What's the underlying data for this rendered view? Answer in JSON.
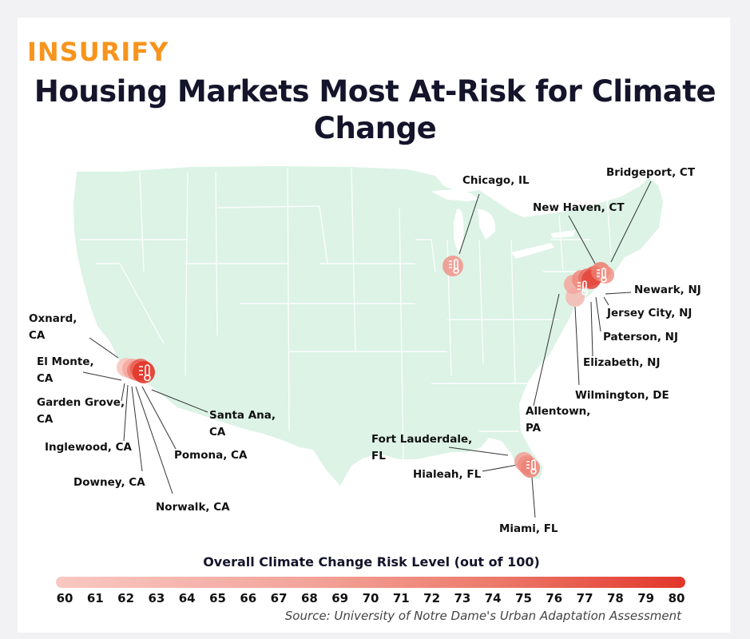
{
  "brand": "INSURIFY",
  "title_line1": "Housing Markets Most At-Risk for Climate",
  "title_line2": "Change",
  "legend": {
    "title": "Overall Climate Change Risk Level (out of 100)",
    "ticks": [
      "60",
      "61",
      "62",
      "63",
      "64",
      "65",
      "66",
      "67",
      "68",
      "69",
      "70",
      "71",
      "72",
      "73",
      "74",
      "75",
      "76",
      "77",
      "78",
      "79",
      "80"
    ],
    "color_low": "#f8c8c2",
    "color_high": "#e2362a"
  },
  "source": "Source: University of Notre Dame's Urban Adaptation Assessment",
  "cities": {
    "chicago": "Chicago, IL",
    "bridgeport": "Bridgeport, CT",
    "new_haven": "New Haven, CT",
    "newark": "Newark, NJ",
    "jersey_city": "Jersey City, NJ",
    "paterson": "Paterson, NJ",
    "elizabeth": "Elizabeth, NJ",
    "wilmington": "Wilmington, DE",
    "allentown_1": "Allentown,",
    "allentown_2": "PA",
    "fort_lauderdale_1": "Fort Lauderdale,",
    "fort_lauderdale_2": "FL",
    "hialeah": "Hialeah, FL",
    "miami": "Miami, FL",
    "oxnard_1": "Oxnard,",
    "oxnard_2": "CA",
    "el_monte_1": "El Monte,",
    "el_monte_2": "CA",
    "garden_grove_1": "Garden Grove,",
    "garden_grove_2": "CA",
    "inglewood": "Inglewood, CA",
    "downey": "Downey, CA",
    "norwalk": "Norwalk, CA",
    "pomona": "Pomona, CA",
    "santa_ana_1": "Santa Ana,",
    "santa_ana_2": "CA"
  },
  "map_colors": {
    "land": "#dcf3e6",
    "border": "#ffffff",
    "leader": "#333333"
  }
}
